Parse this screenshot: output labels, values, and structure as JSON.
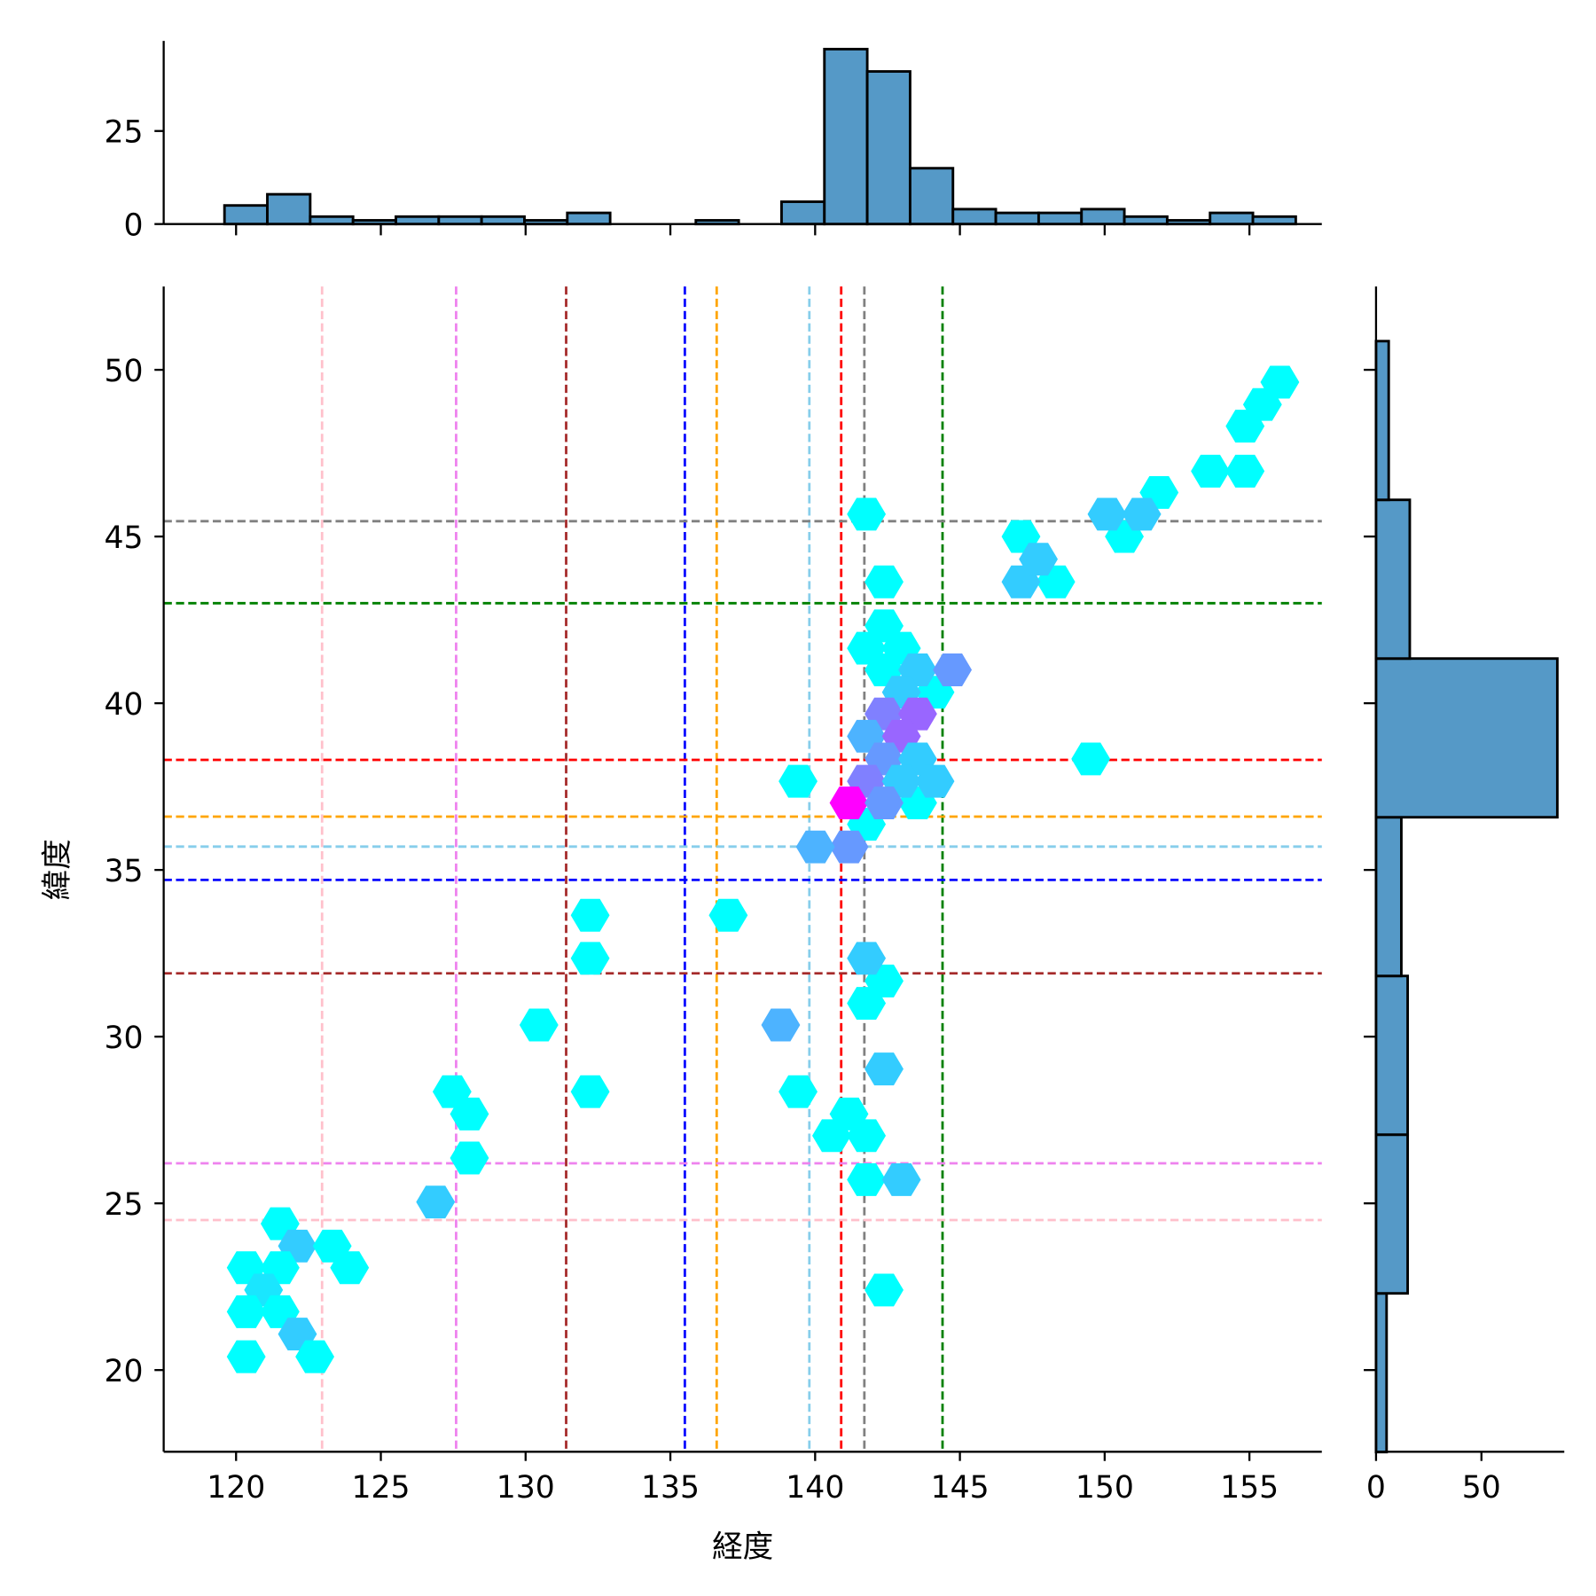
{
  "chart_data": {
    "type": "hexbin-joint",
    "xlabel": "経度",
    "ylabel": "緯度",
    "xlim": [
      117.5,
      157.5
    ],
    "ylim": [
      17.55,
      52.5
    ],
    "xticks": [
      120,
      125,
      130,
      135,
      140,
      145,
      150,
      155
    ],
    "yticks": [
      20,
      25,
      30,
      35,
      40,
      45,
      50
    ],
    "colormap": "cool",
    "count_range": [
      1,
      11
    ],
    "hexbins": [
      {
        "lon": 141.77,
        "lat": 45.67,
        "count": 1
      },
      {
        "lon": 142.38,
        "lat": 43.64,
        "count": 1
      },
      {
        "lon": 147.11,
        "lat": 45.0,
        "count": 1
      },
      {
        "lon": 148.31,
        "lat": 43.64,
        "count": 1
      },
      {
        "lon": 150.68,
        "lat": 45.0,
        "count": 1
      },
      {
        "lon": 151.88,
        "lat": 46.32,
        "count": 1
      },
      {
        "lon": 153.65,
        "lat": 46.96,
        "count": 1
      },
      {
        "lon": 154.85,
        "lat": 46.96,
        "count": 1
      },
      {
        "lon": 154.85,
        "lat": 48.31,
        "count": 1
      },
      {
        "lon": 155.45,
        "lat": 48.96,
        "count": 1
      },
      {
        "lon": 156.05,
        "lat": 49.63,
        "count": 1
      },
      {
        "lon": 149.52,
        "lat": 38.33,
        "count": 1
      },
      {
        "lon": 139.41,
        "lat": 37.66,
        "count": 1
      },
      {
        "lon": 141.77,
        "lat": 36.37,
        "count": 1
      },
      {
        "lon": 143.54,
        "lat": 37.01,
        "count": 1
      },
      {
        "lon": 144.14,
        "lat": 40.33,
        "count": 1
      },
      {
        "lon": 142.38,
        "lat": 42.32,
        "count": 1
      },
      {
        "lon": 141.77,
        "lat": 41.65,
        "count": 1
      },
      {
        "lon": 142.98,
        "lat": 41.65,
        "count": 1
      },
      {
        "lon": 142.38,
        "lat": 41.0,
        "count": 1
      },
      {
        "lon": 150.08,
        "lat": 45.67,
        "count": 3
      },
      {
        "lon": 151.28,
        "lat": 45.67,
        "count": 3
      },
      {
        "lon": 147.11,
        "lat": 43.64,
        "count": 3
      },
      {
        "lon": 147.71,
        "lat": 44.32,
        "count": 3
      },
      {
        "lon": 143.54,
        "lat": 41.0,
        "count": 3
      },
      {
        "lon": 144.74,
        "lat": 41.0,
        "count": 5
      },
      {
        "lon": 142.98,
        "lat": 40.33,
        "count": 3
      },
      {
        "lon": 142.38,
        "lat": 39.68,
        "count": 6
      },
      {
        "lon": 143.54,
        "lat": 39.68,
        "count": 7
      },
      {
        "lon": 141.77,
        "lat": 39.01,
        "count": 4
      },
      {
        "lon": 142.98,
        "lat": 39.01,
        "count": 7
      },
      {
        "lon": 142.38,
        "lat": 38.33,
        "count": 5
      },
      {
        "lon": 143.54,
        "lat": 38.33,
        "count": 3
      },
      {
        "lon": 141.77,
        "lat": 37.66,
        "count": 6
      },
      {
        "lon": 142.98,
        "lat": 37.66,
        "count": 3
      },
      {
        "lon": 144.14,
        "lat": 37.66,
        "count": 3
      },
      {
        "lon": 141.17,
        "lat": 37.01,
        "count": 11
      },
      {
        "lon": 142.38,
        "lat": 37.01,
        "count": 5
      },
      {
        "lon": 141.17,
        "lat": 35.69,
        "count": 5
      },
      {
        "lon": 140.01,
        "lat": 35.69,
        "count": 4
      },
      {
        "lon": 132.23,
        "lat": 33.64,
        "count": 1
      },
      {
        "lon": 132.23,
        "lat": 32.35,
        "count": 1
      },
      {
        "lon": 130.46,
        "lat": 30.35,
        "count": 1
      },
      {
        "lon": 132.23,
        "lat": 28.35,
        "count": 1
      },
      {
        "lon": 137.0,
        "lat": 33.64,
        "count": 1
      },
      {
        "lon": 139.41,
        "lat": 28.35,
        "count": 1
      },
      {
        "lon": 141.77,
        "lat": 31.0,
        "count": 1
      },
      {
        "lon": 142.38,
        "lat": 31.67,
        "count": 1
      },
      {
        "lon": 141.77,
        "lat": 32.35,
        "count": 3
      },
      {
        "lon": 142.38,
        "lat": 29.03,
        "count": 3
      },
      {
        "lon": 138.81,
        "lat": 30.35,
        "count": 4
      },
      {
        "lon": 141.17,
        "lat": 27.68,
        "count": 1
      },
      {
        "lon": 140.57,
        "lat": 27.03,
        "count": 1
      },
      {
        "lon": 141.77,
        "lat": 27.03,
        "count": 1
      },
      {
        "lon": 141.77,
        "lat": 25.71,
        "count": 1
      },
      {
        "lon": 142.98,
        "lat": 25.71,
        "count": 3
      },
      {
        "lon": 142.38,
        "lat": 22.4,
        "count": 1
      },
      {
        "lon": 127.46,
        "lat": 28.35,
        "count": 1
      },
      {
        "lon": 128.06,
        "lat": 27.68,
        "count": 1
      },
      {
        "lon": 128.06,
        "lat": 26.36,
        "count": 1
      },
      {
        "lon": 126.89,
        "lat": 25.04,
        "count": 3
      },
      {
        "lon": 121.52,
        "lat": 24.39,
        "count": 1
      },
      {
        "lon": 122.12,
        "lat": 23.72,
        "count": 3
      },
      {
        "lon": 123.32,
        "lat": 23.72,
        "count": 1
      },
      {
        "lon": 123.92,
        "lat": 23.07,
        "count": 1
      },
      {
        "lon": 120.35,
        "lat": 23.07,
        "count": 1
      },
      {
        "lon": 121.52,
        "lat": 23.07,
        "count": 1
      },
      {
        "lon": 120.95,
        "lat": 22.4,
        "count": 2
      },
      {
        "lon": 120.35,
        "lat": 21.75,
        "count": 1
      },
      {
        "lon": 121.52,
        "lat": 21.75,
        "count": 1
      },
      {
        "lon": 122.12,
        "lat": 21.08,
        "count": 3
      },
      {
        "lon": 120.35,
        "lat": 20.4,
        "count": 1
      },
      {
        "lon": 122.72,
        "lat": 20.4,
        "count": 1
      }
    ],
    "vertical_lines": [
      {
        "lon": 122.97,
        "color": "#ffc0cb"
      },
      {
        "lon": 127.6,
        "color": "#ee82ee"
      },
      {
        "lon": 131.4,
        "color": "#a52a2a"
      },
      {
        "lon": 135.5,
        "color": "#0000ff"
      },
      {
        "lon": 136.6,
        "color": "#ffa500"
      },
      {
        "lon": 139.8,
        "color": "#87ceeb"
      },
      {
        "lon": 140.9,
        "color": "#ff0000"
      },
      {
        "lon": 141.7,
        "color": "#808080"
      },
      {
        "lon": 144.4,
        "color": "#008000"
      }
    ],
    "horizontal_lines": [
      {
        "lat": 45.46,
        "color": "#808080"
      },
      {
        "lat": 43.0,
        "color": "#008000"
      },
      {
        "lat": 38.3,
        "color": "#ff0000"
      },
      {
        "lat": 36.6,
        "color": "#ffa500"
      },
      {
        "lat": 35.7,
        "color": "#87ceeb"
      },
      {
        "lat": 34.7,
        "color": "#0000ff"
      },
      {
        "lat": 31.9,
        "color": "#a52a2a"
      },
      {
        "lat": 26.2,
        "color": "#ee82ee"
      },
      {
        "lat": 24.5,
        "color": "#ffc0cb"
      }
    ],
    "top_histogram": {
      "bin_start": 119.6,
      "bin_width": 1.48,
      "counts": [
        5,
        8,
        2,
        1,
        2,
        2,
        2,
        1,
        3,
        0,
        0,
        1,
        0,
        6,
        47,
        41,
        15,
        4,
        3,
        3,
        4,
        2,
        1,
        3,
        2
      ],
      "yticks": [
        0,
        25
      ],
      "ylim": [
        0,
        49.2
      ]
    },
    "right_histogram": {
      "bin_start": 17.54,
      "bin_width": 4.76,
      "counts": [
        5,
        15,
        15,
        12,
        86,
        16,
        6
      ],
      "xticks": [
        0,
        50
      ],
      "xlim": [
        0,
        89.3
      ]
    },
    "bar_color": "#5599c7"
  }
}
